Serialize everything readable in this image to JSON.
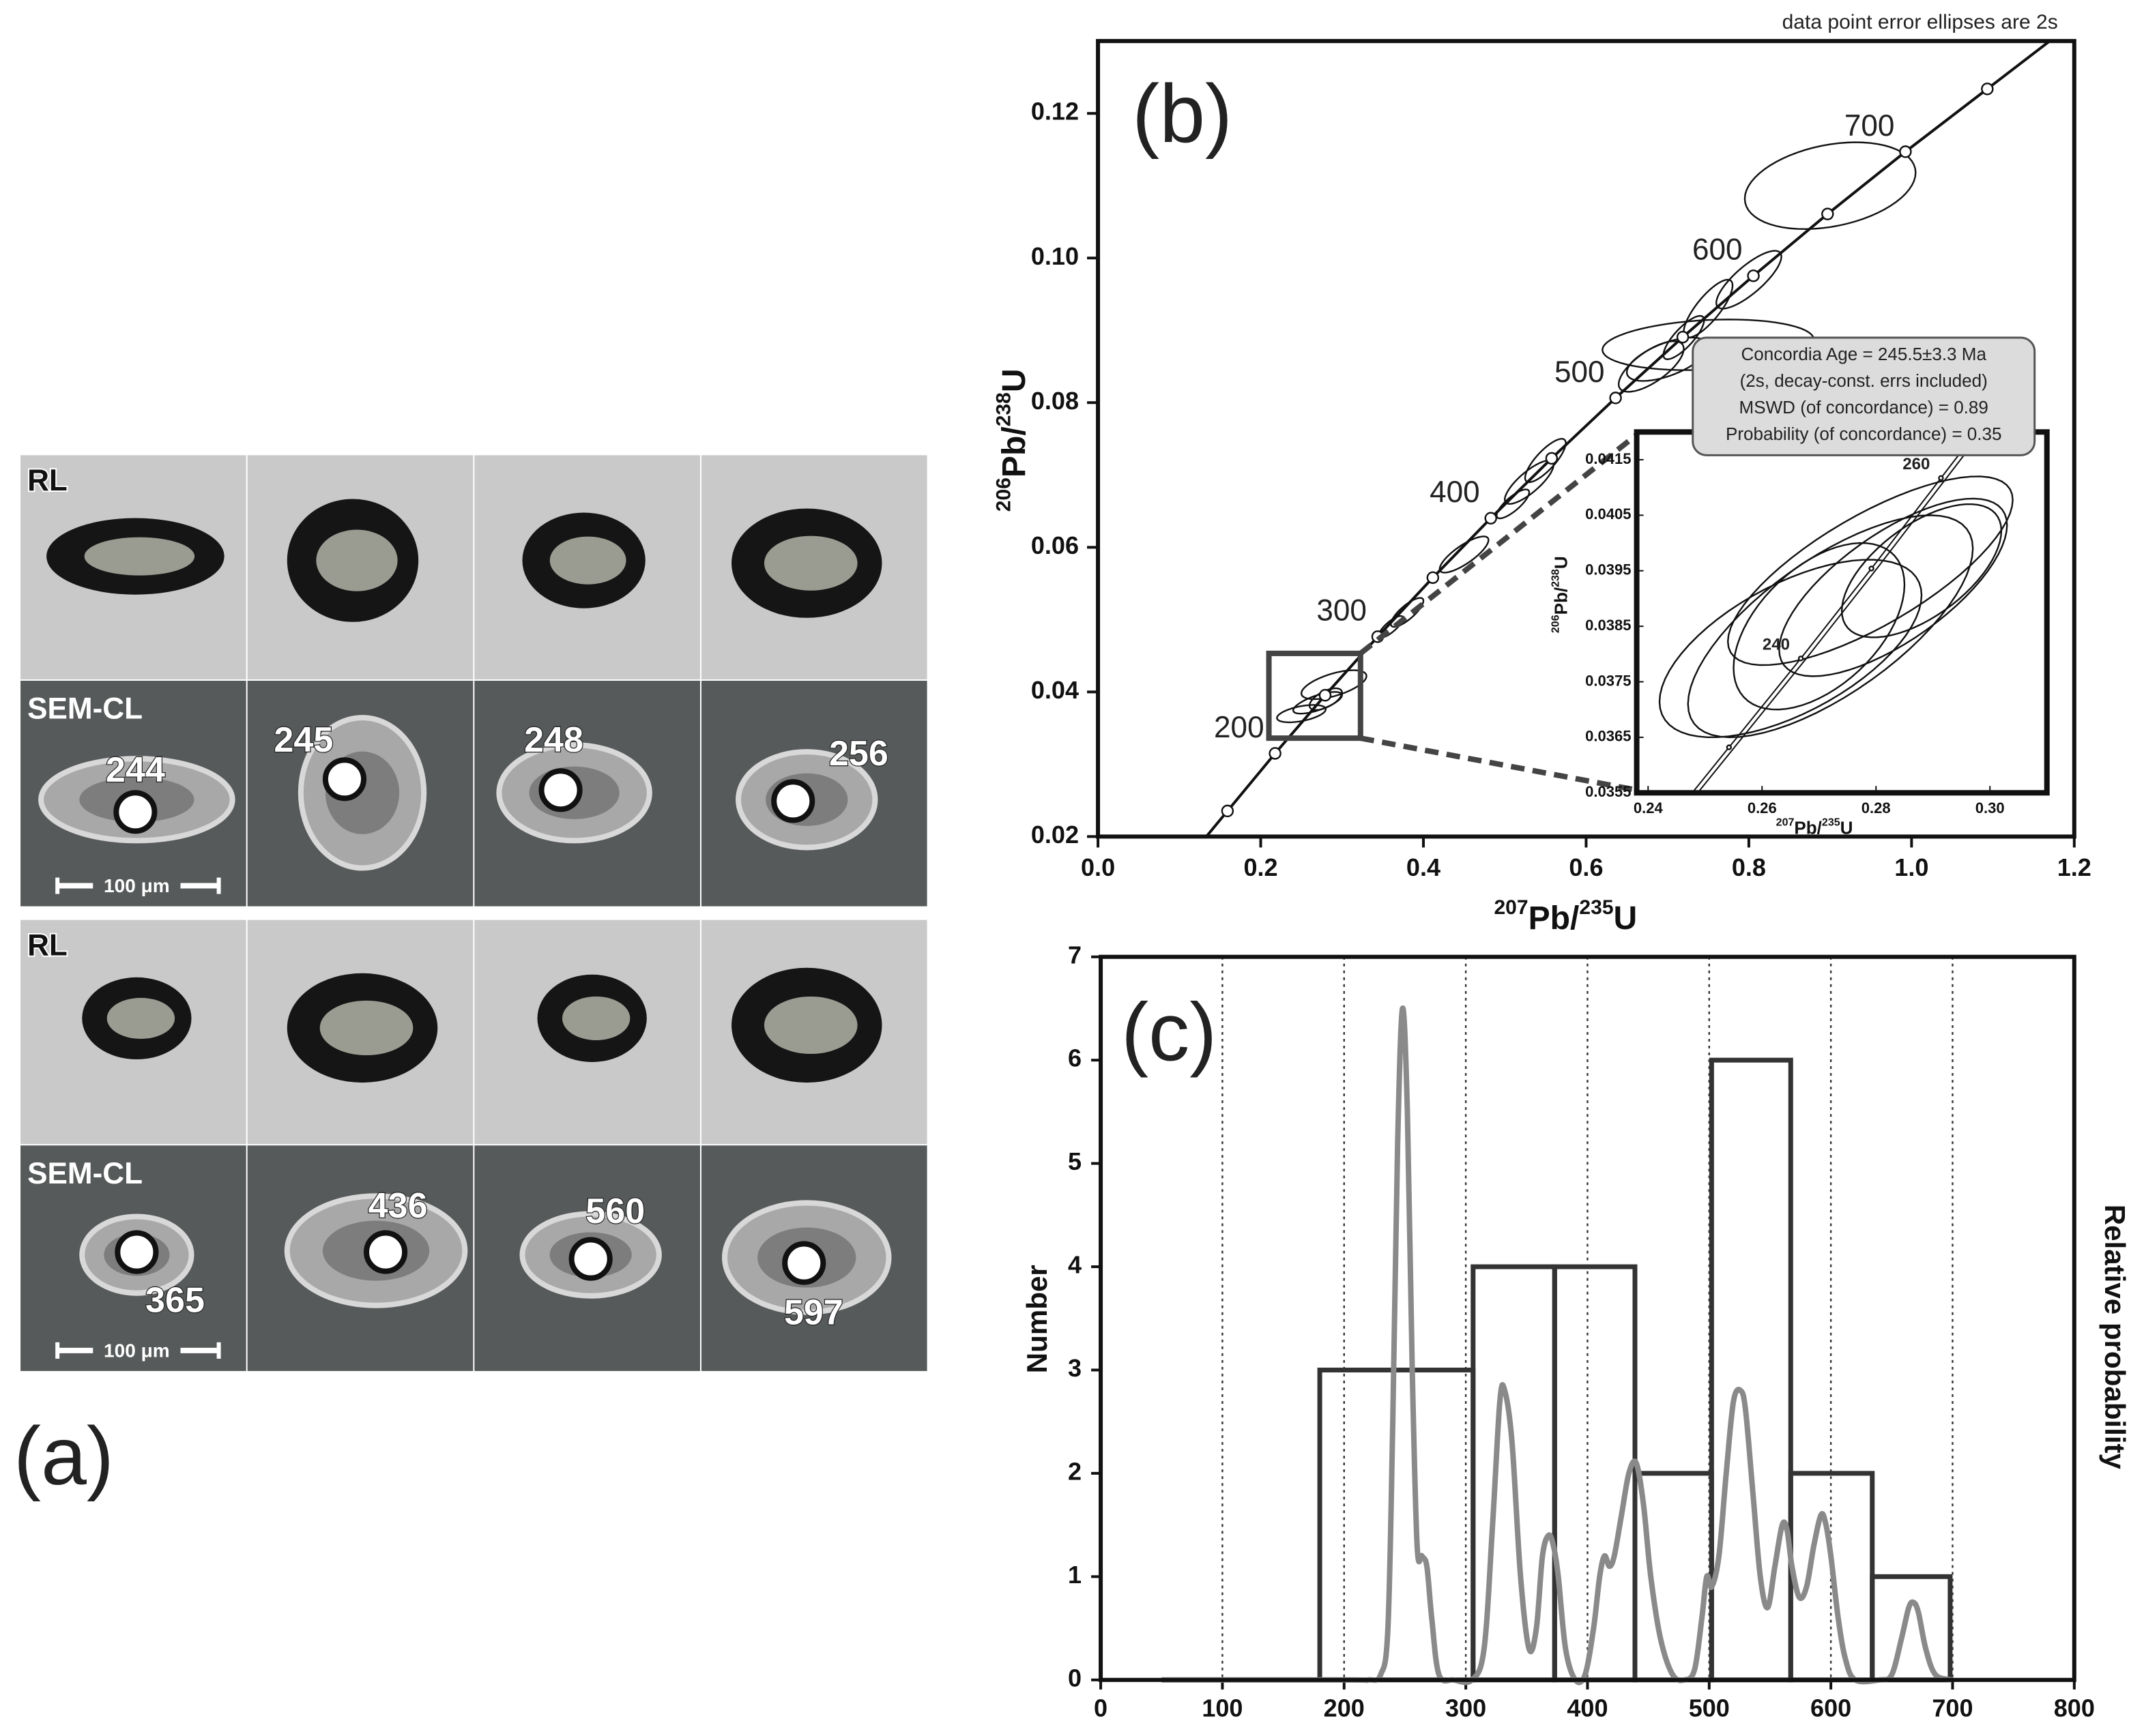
{
  "panel_a": {
    "label": "(a)",
    "blocks": [
      {
        "rl": "RL",
        "cl": "SEM-CL",
        "scale": "100 μm",
        "spots": [
          244,
          245,
          248,
          256
        ]
      },
      {
        "rl": "RL",
        "cl": "SEM-CL",
        "scale": "100 μm",
        "spots": [
          365,
          436,
          560,
          597
        ]
      }
    ]
  },
  "chart_data": [
    {
      "type": "concordia",
      "label": "(b)",
      "note": "data point error ellipses are 2s",
      "xlabel": [
        "207",
        "Pb/",
        "235",
        "U"
      ],
      "ylabel": [
        "206",
        "Pb/",
        "238",
        "U"
      ],
      "xlim": [
        0,
        1.2
      ],
      "xticks": [
        {
          "value": 0,
          "label": "0.0"
        },
        0.2,
        0.4,
        0.6,
        0.8,
        {
          "value": 1,
          "label": "1.0"
        },
        1.2
      ],
      "ylim": [
        0.02,
        0.13
      ],
      "yticks": [
        0.02,
        0.04,
        0.06,
        0.08,
        {
          "value": 0.1,
          "label": "0.10"
        },
        0.12
      ],
      "concordia": {
        "x": [
          0.1592,
          0.2177,
          0.2792,
          0.3438,
          0.4116,
          0.4828,
          0.5576,
          0.6362,
          0.7188,
          0.8056,
          0.8968,
          0.9925,
          1.0931
        ],
        "y": [
          0.02354,
          0.0315,
          0.03954,
          0.04764,
          0.0558,
          0.06402,
          0.0723,
          0.08065,
          0.08906,
          0.09754,
          0.10609,
          0.1147,
          0.12338
        ],
        "labels": [
          null,
          200,
          null,
          300,
          null,
          400,
          null,
          500,
          null,
          600,
          null,
          700,
          null
        ]
      },
      "ellipses": {
        "x": [
          0.9,
          0.75,
          0.8,
          0.75,
          0.7,
          0.68,
          0.72,
          0.55,
          0.53,
          0.51,
          0.45,
          0.38,
          0.36,
          0.29,
          0.27,
          0.25,
          0.28
        ],
        "y": [
          0.11,
          0.088,
          0.097,
          0.093,
          0.086,
          0.085,
          0.089,
          0.072,
          0.069,
          0.066,
          0.059,
          0.051,
          0.049,
          0.041,
          0.0385,
          0.037,
          0.039
        ],
        "x_err": [
          0.105,
          0.13,
          0.04,
          0.03,
          0.05,
          0.04,
          0.025,
          0.025,
          0.03,
          0.02,
          0.03,
          0.02,
          0.015,
          0.04,
          0.03,
          0.03,
          0.02
        ],
        "y_err": [
          0.006,
          0.0035,
          0.004,
          0.004,
          0.003,
          0.0035,
          0.003,
          0.003,
          0.003,
          0.002,
          0.0025,
          0.002,
          0.0015,
          0.002,
          0.0015,
          0.0012,
          0.0015
        ],
        "rho": [
          0.3,
          0.2,
          0.8,
          0.8,
          0.6,
          0.7,
          0.8,
          0.8,
          0.8,
          0.8,
          0.8,
          0.8,
          0.8,
          0.6,
          0.7,
          0.5,
          0.6
        ]
      },
      "annotation": [
        "Concordia Age = 245.5±3.3 Ma",
        "(2s, decay-const. errs included)",
        "MSWD (of concordance) = 0.89",
        "Probability (of concordance) = 0.35"
      ],
      "inset": {
        "xlabel": [
          "207",
          "Pb/",
          "235",
          "U"
        ],
        "ylabel": [
          "206",
          "Pb/",
          "238",
          "U"
        ],
        "xlim": [
          0.238,
          0.31
        ],
        "xticks": [
          0.24,
          0.26,
          0.28,
          {
            "value": 0.3,
            "label": "0.30"
          }
        ],
        "ylim": [
          0.0355,
          0.042
        ],
        "yticks": [
          0.0355,
          0.0365,
          0.0375,
          0.0385,
          0.0395,
          0.0405,
          0.0415
        ],
        "concordia": {
          "x": [
            0.2542,
            0.2668,
            0.2792,
            0.2914
          ],
          "y": [
            0.03632,
            0.03792,
            0.03954,
            0.04117
          ],
          "labels": [
            null,
            240,
            null,
            260
          ]
        },
        "ellipses": {
          "x": [
            0.272,
            0.283,
            0.27,
            0.288,
            0.279,
            0.265
          ],
          "y": [
            0.0385,
            0.0392,
            0.0385,
            0.0395,
            0.0395,
            0.0381
          ],
          "x_err": [
            0.025,
            0.02,
            0.015,
            0.014,
            0.025,
            0.023
          ],
          "y_err": [
            0.002,
            0.0016,
            0.0015,
            0.0012,
            0.0017,
            0.0016
          ],
          "rho": [
            0.7,
            0.7,
            0.5,
            0.6,
            0.75,
            0.6
          ]
        }
      }
    },
    {
      "type": "histogram",
      "label": "(c)",
      "ylabel": "Number",
      "y2label": "Relative probability",
      "xlim": [
        0,
        800
      ],
      "xticks": [
        0,
        100,
        200,
        300,
        400,
        500,
        600,
        700,
        800
      ],
      "ylim": [
        0,
        7
      ],
      "yticks": [
        0,
        1,
        2,
        3,
        4,
        5,
        6,
        7
      ],
      "grid": true,
      "bins": [
        180,
        306,
        373,
        439,
        502,
        567,
        634,
        698
      ],
      "values": [
        3,
        4,
        4,
        2,
        6,
        2,
        1
      ],
      "color": "#333333",
      "probability": {
        "color": "#8a8a8a",
        "x": [
          50,
          200,
          220,
          230,
          236,
          240,
          244,
          248,
          252,
          256,
          260,
          264,
          268,
          272,
          278,
          290,
          305,
          315,
          322,
          328,
          332,
          338,
          345,
          352,
          358,
          363,
          368,
          372,
          376,
          382,
          390,
          398,
          405,
          410,
          414,
          418,
          422,
          428,
          434,
          440,
          446,
          452,
          460,
          470,
          480,
          488,
          494,
          498,
          502,
          508,
          514,
          520,
          526,
          530,
          536,
          542,
          548,
          554,
          560,
          564,
          568,
          574,
          580,
          586,
          592,
          596,
          600,
          606,
          612,
          620,
          640,
          650,
          658,
          664,
          668,
          672,
          678,
          686,
          700
        ],
        "y": [
          0,
          0,
          0,
          0.05,
          0.5,
          2.5,
          5.2,
          6.5,
          5.5,
          3.0,
          1.3,
          1.2,
          1.1,
          0.6,
          0.05,
          0,
          0,
          0.3,
          1.5,
          2.7,
          2.8,
          2.3,
          1.0,
          0.3,
          0.5,
          1.2,
          1.4,
          1.3,
          1.0,
          0.3,
          0,
          0.05,
          0.5,
          1.0,
          1.2,
          1.1,
          1.2,
          1.6,
          2.0,
          2.1,
          1.7,
          1.0,
          0.4,
          0.05,
          0,
          0.1,
          0.6,
          1.0,
          0.9,
          1.2,
          2.0,
          2.7,
          2.8,
          2.6,
          1.8,
          1.0,
          0.7,
          1.1,
          1.5,
          1.45,
          1.1,
          0.8,
          0.9,
          1.3,
          1.6,
          1.5,
          1.2,
          0.6,
          0.2,
          0,
          0,
          0.05,
          0.4,
          0.7,
          0.75,
          0.65,
          0.3,
          0.05,
          0
        ]
      }
    }
  ]
}
